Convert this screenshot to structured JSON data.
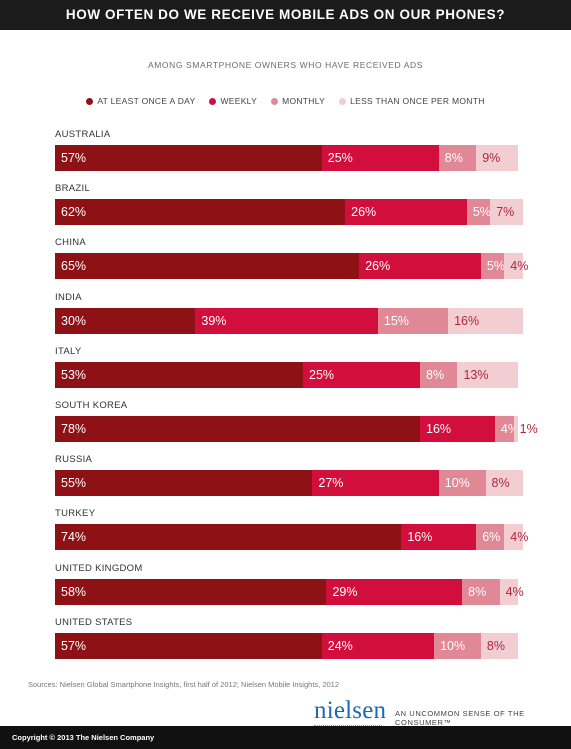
{
  "header": {
    "title": "HOW OFTEN DO WE RECEIVE MOBILE ADS ON OUR PHONES?"
  },
  "subtitle": "AMONG SMARTPHONE OWNERS WHO HAVE RECEIVED ADS",
  "colors": {
    "at_least_once_a_day": "#8e1116",
    "weekly": "#d20f3c",
    "monthly": "#e18896",
    "less_than_once": "#f2cdd2",
    "title_bg": "#1b1b1b",
    "logo": "#1a6ab3"
  },
  "chart_data": {
    "type": "bar",
    "orientation": "horizontal-stacked",
    "categories": [
      "AUSTRALIA",
      "BRAZIL",
      "CHINA",
      "INDIA",
      "ITALY",
      "SOUTH KOREA",
      "RUSSIA",
      "TURKEY",
      "UNITED KINGDOM",
      "UNITED STATES"
    ],
    "series": [
      {
        "name": "AT LEAST ONCE A DAY",
        "values": [
          57,
          62,
          65,
          30,
          53,
          78,
          55,
          74,
          58,
          57
        ]
      },
      {
        "name": "WEEKLY",
        "values": [
          25,
          26,
          26,
          39,
          25,
          16,
          27,
          16,
          29,
          24
        ]
      },
      {
        "name": "MONTHLY",
        "values": [
          8,
          5,
          5,
          15,
          8,
          4,
          10,
          6,
          8,
          10
        ]
      },
      {
        "name": "LESS THAN ONCE PER MONTH",
        "values": [
          9,
          7,
          4,
          16,
          13,
          1,
          8,
          4,
          4,
          8
        ]
      }
    ],
    "value_suffix": "%",
    "legend_position": "top",
    "title": "HOW OFTEN DO WE RECEIVE MOBILE ADS ON OUR PHONES?",
    "subtitle": "AMONG SMARTPHONE OWNERS WHO HAVE RECEIVED ADS"
  },
  "source": "Sources: Nielsen Global Smartphone Insights, first half of 2012; Nielsen Mobile Insights, 2012",
  "logo": {
    "text": "nielsen",
    "tagline": "AN UNCOMMON SENSE OF THE CONSUMER™"
  },
  "footer": {
    "copyright": "Copyright © 2013 The Nielsen Company"
  }
}
